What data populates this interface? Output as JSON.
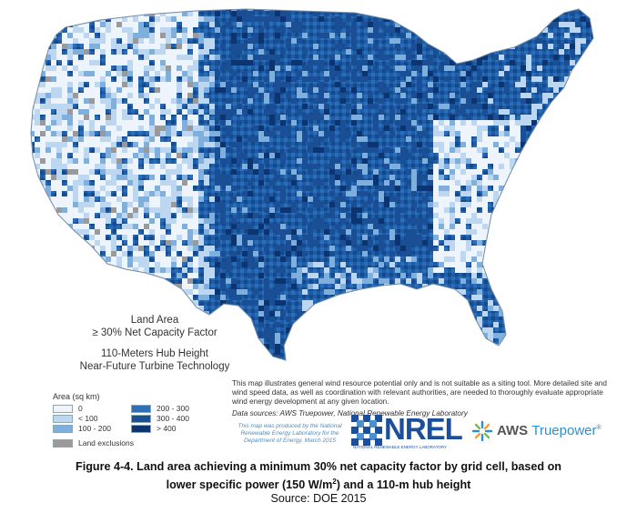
{
  "legend": {
    "title_line1": "Land Area",
    "title_line2": "≥ 30% Net Capacity Factor",
    "subtitle_line1": "110-Meters Hub Height",
    "subtitle_line2": "Near-Future Turbine Technology",
    "heading": "Area (sq km)",
    "classes": [
      {
        "label": "0",
        "color": "#eef4fb"
      },
      {
        "label": "< 100",
        "color": "#bcd7ef"
      },
      {
        "label": "100 - 200",
        "color": "#7fb0dd"
      },
      {
        "label": "200 - 300",
        "color": "#2f6fb3"
      },
      {
        "label": "300 - 400",
        "color": "#1a4f95"
      },
      {
        "label": "> 400",
        "color": "#0c3470"
      },
      {
        "label": "Land exclusions",
        "color": "#9a9a9a"
      }
    ]
  },
  "notes": {
    "disclaimer": "This map illustrates general wind resource potential only and is not suitable as a siting tool. More detailed site and wind speed data, as well as coordination with relevant authorities, are needed to thoroughly evaluate appropriate wind energy development at any given location.",
    "data_sources_line1": "Data sources: AWS Truepower, National Renewable Energy Laboratory",
    "produced_by": "This map was produced by the National Renewable Energy Laboratory for the Department of Energy. March 2015"
  },
  "logos": {
    "nrel": "NREL",
    "nrel_sub": "NATIONAL RENEWABLE ENERGY LABORATORY",
    "aws_prefix": "AWS",
    "aws_suffix": "Truepower"
  },
  "caption": {
    "line1": "Figure 4-4. Land area achieving a minimum 30% net capacity factor by grid cell, based on",
    "line2_pre": "lower specific power (150 W/m",
    "line2_sup": "2",
    "line2_post": ") and a 110-m hub height",
    "source": "Source: DOE 2015"
  },
  "colors": {
    "map_base_dark": "#1e5aa3",
    "map_light": "#d9e8f6",
    "exclusion": "#9a9a9a"
  }
}
